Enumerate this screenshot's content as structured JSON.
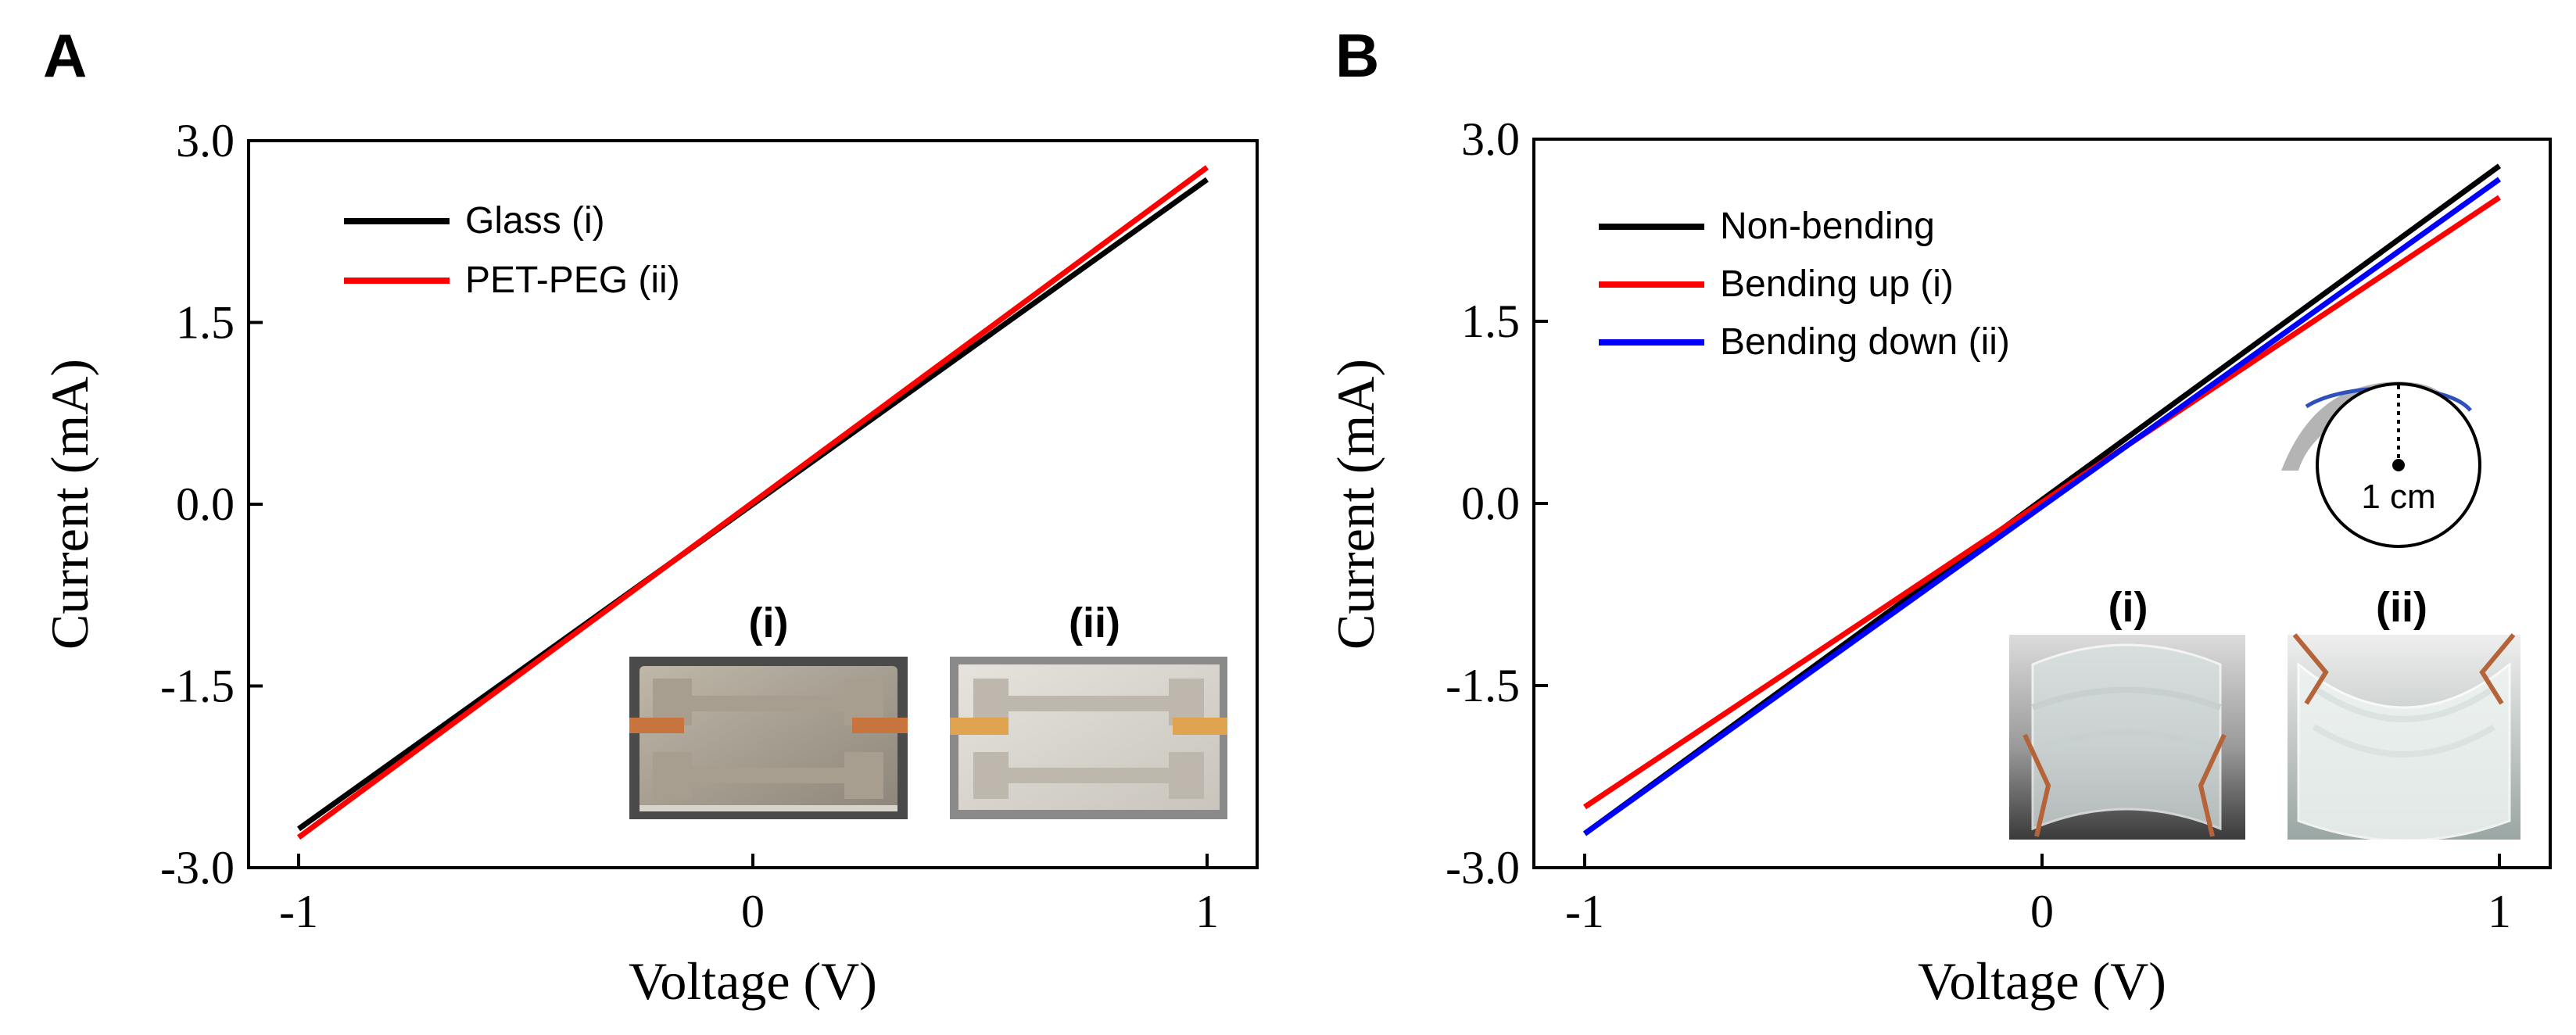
{
  "chart_data": [
    {
      "panel": "A",
      "type": "line",
      "title": "",
      "xlabel": "Voltage (V)",
      "ylabel": "Current (mA)",
      "xlim": [
        -1,
        1
      ],
      "ylim": [
        -3.0,
        3.0
      ],
      "xticks": [
        "-1",
        "0",
        "1"
      ],
      "yticks": [
        "3.0",
        "1.5",
        "0.0",
        "-1.5",
        "-3.0"
      ],
      "legend": "top-left",
      "grid": false,
      "series": [
        {
          "name": "Glass (i)",
          "color": "#000000",
          "x": [
            -1,
            1
          ],
          "y": [
            -2.68,
            2.68
          ]
        },
        {
          "name": "PET-PEG (ii)",
          "color": "#ff0000",
          "x": [
            -1,
            1
          ],
          "y": [
            -2.75,
            2.78
          ]
        }
      ],
      "insets": [
        {
          "label": "(i)"
        },
        {
          "label": "(ii)"
        }
      ]
    },
    {
      "panel": "B",
      "type": "line",
      "title": "",
      "xlabel": "Voltage (V)",
      "ylabel": "Current (mA)",
      "xlim": [
        -1,
        1
      ],
      "ylim": [
        -3.0,
        3.0
      ],
      "xticks": [
        "-1",
        "0",
        "1"
      ],
      "yticks": [
        "3.0",
        "1.5",
        "0.0",
        "-1.5",
        "-3.0"
      ],
      "legend": "top-left",
      "grid": false,
      "series": [
        {
          "name": "Non-bending",
          "color": "#000000",
          "x": [
            -1,
            1
          ],
          "y": [
            -2.72,
            2.78
          ]
        },
        {
          "name": "Bending up (i)",
          "color": "#ff0000",
          "x": [
            -1,
            1
          ],
          "y": [
            -2.5,
            2.52
          ]
        },
        {
          "name": "Bending down (ii)",
          "color": "#0000ff",
          "x": [
            -1,
            1
          ],
          "y": [
            -2.72,
            2.67
          ]
        }
      ],
      "insets": [
        {
          "label": "(i)"
        },
        {
          "label": "(ii)"
        }
      ],
      "annotation": "1 cm"
    }
  ]
}
